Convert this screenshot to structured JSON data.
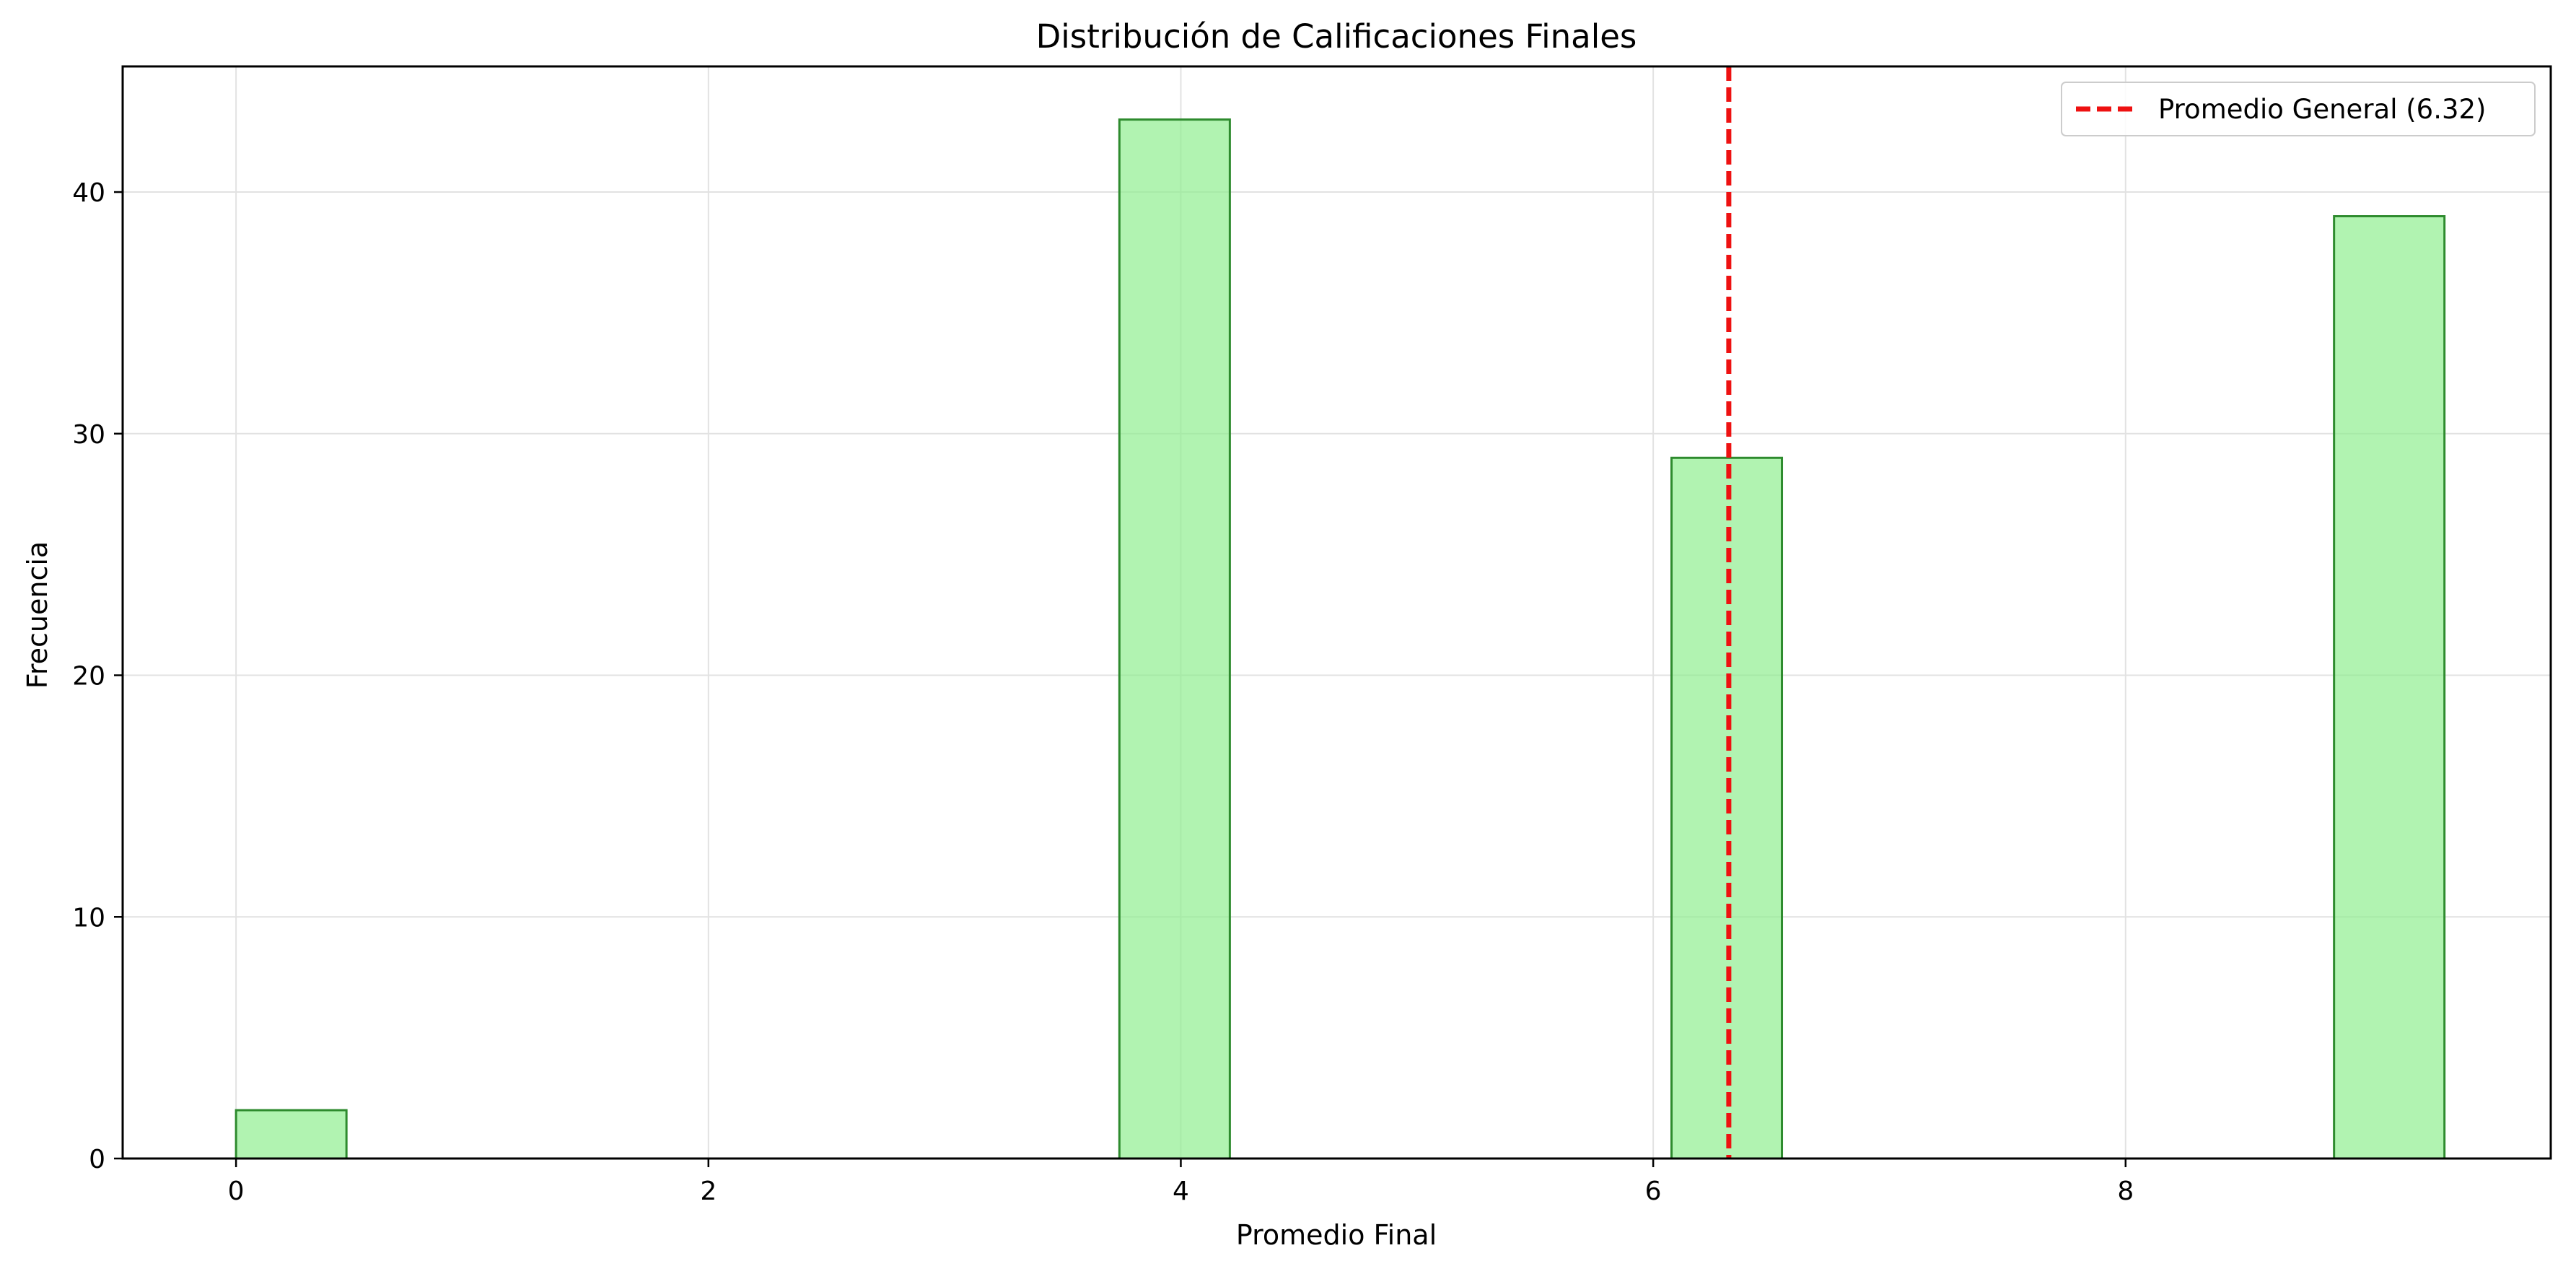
{
  "chart_data": {
    "type": "bar",
    "title": "Distribución de Calificaciones Finales",
    "xlabel": "Promedio Final",
    "ylabel": "Frecuencia",
    "xlim": [
      -0.48,
      9.8
    ],
    "ylim": [
      0,
      45.2
    ],
    "xticks": [
      0,
      2,
      4,
      6,
      8
    ],
    "yticks": [
      0,
      10,
      20,
      30,
      40
    ],
    "grid": true,
    "legend_position": "top-right",
    "bins": [
      {
        "start": 0.0,
        "end": 0.4675,
        "count": 2
      },
      {
        "start": 3.74,
        "end": 4.2075,
        "count": 43
      },
      {
        "start": 6.0775,
        "end": 6.545,
        "count": 29
      },
      {
        "start": 8.8825,
        "end": 9.35,
        "count": 39
      }
    ],
    "reference_line": {
      "x": 6.32,
      "label": "Promedio General (6.32)"
    },
    "colors": {
      "bar_fill": "#90ee90",
      "bar_edge": "#2e8b2e",
      "mean_line": "#ee1111",
      "grid": "#e2e2e2"
    }
  }
}
